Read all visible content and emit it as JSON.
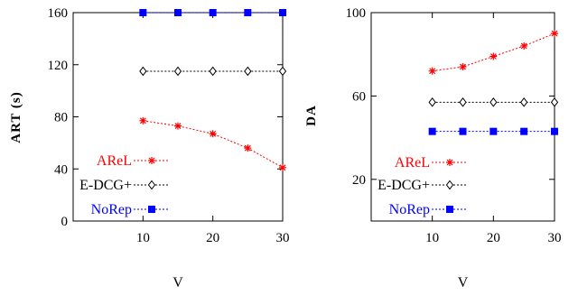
{
  "chart_data": [
    {
      "type": "line",
      "ylabel": "ART (s)",
      "xlabel": "V",
      "xlim": [
        0,
        30
      ],
      "ylim": [
        0,
        160
      ],
      "xticks": [
        10,
        20,
        30
      ],
      "yticks": [
        0,
        40,
        80,
        120,
        160
      ],
      "x": [
        10,
        15,
        20,
        25,
        30
      ],
      "grid": false,
      "legend": "bottom-left",
      "series": [
        {
          "name": "AReL",
          "values": [
            77,
            73,
            67,
            56,
            41
          ],
          "color": "#ff0000",
          "marker": "star"
        },
        {
          "name": "E-DCG+",
          "values": [
            115,
            115,
            115,
            115,
            115
          ],
          "color": "#000000",
          "marker": "diamond"
        },
        {
          "name": "NoRep",
          "values": [
            160,
            160,
            160,
            160,
            160
          ],
          "color": "#0000ff",
          "marker": "square"
        }
      ]
    },
    {
      "type": "line",
      "ylabel": "DA",
      "xlabel": "V",
      "xlim": [
        0,
        30
      ],
      "ylim": [
        0,
        100
      ],
      "xticks": [
        10,
        20,
        30
      ],
      "yticks": [
        20,
        60,
        100
      ],
      "x": [
        10,
        15,
        20,
        25,
        30
      ],
      "grid": false,
      "legend": "bottom-left",
      "series": [
        {
          "name": "AReL",
          "values": [
            72,
            74,
            79,
            84,
            90
          ],
          "color": "#ff0000",
          "marker": "star"
        },
        {
          "name": "E-DCG+",
          "values": [
            57,
            57,
            57,
            57,
            57
          ],
          "color": "#000000",
          "marker": "diamond"
        },
        {
          "name": "NoRep",
          "values": [
            43,
            43,
            43,
            43,
            43
          ],
          "color": "#0000ff",
          "marker": "square"
        }
      ]
    }
  ]
}
